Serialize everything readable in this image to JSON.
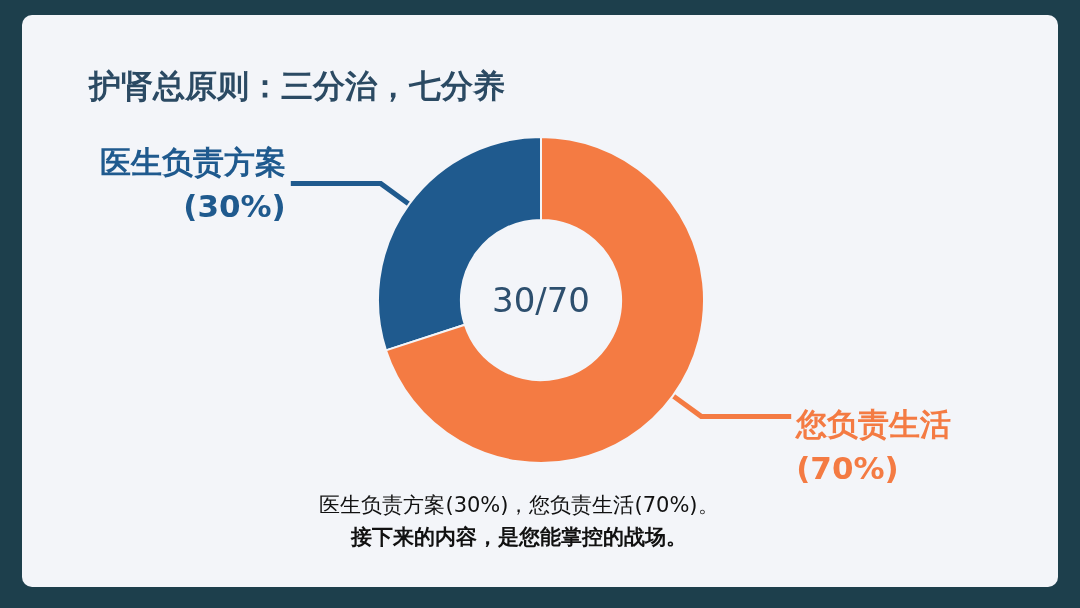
{
  "chart_data": {
    "type": "donut",
    "title": "护肾总原则：三分治，七分养",
    "categories": [
      "医生负责方案",
      "您负责生活"
    ],
    "values": [
      30,
      70
    ],
    "colors": [
      "#1f5a8e",
      "#f47b43"
    ],
    "value_labels": [
      "(30%)",
      "(70%)"
    ],
    "annotations": [
      "30/70",
      "医生负责方案(30%)，您负责生活(70%)。",
      "接下来的内容，是您能掌控的战场。"
    ]
  }
}
